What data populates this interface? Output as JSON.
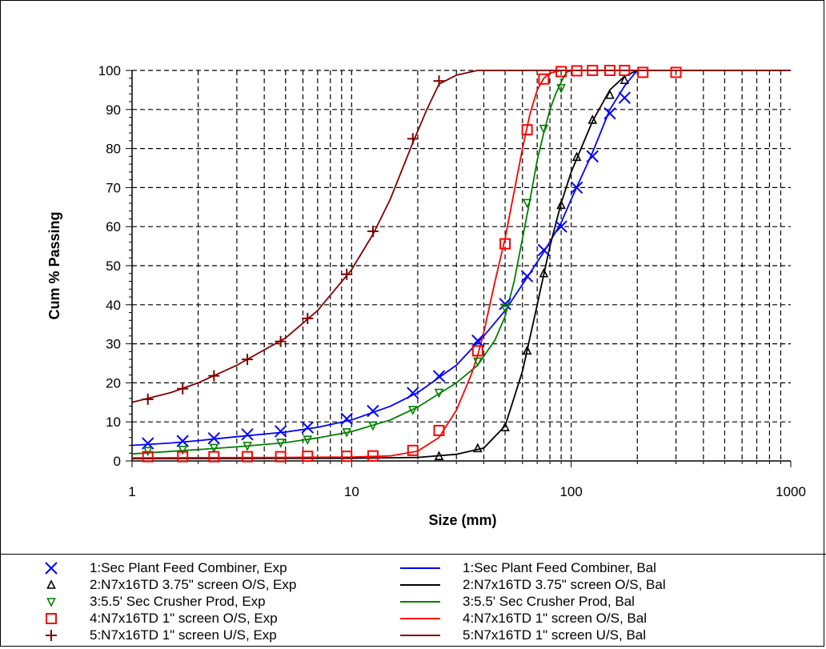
{
  "chart_data": {
    "type": "line",
    "title": "",
    "xlabel": "Size (mm)",
    "ylabel": "Cum % Passing",
    "x_scale": "log",
    "xlim": [
      1,
      1000
    ],
    "ylim": [
      0,
      100
    ],
    "x_ticks": [
      1,
      10,
      100,
      1000
    ],
    "x_tick_labels": [
      "1",
      "10",
      "100",
      "1000"
    ],
    "y_ticks": [
      0,
      10,
      20,
      30,
      40,
      50,
      60,
      70,
      80,
      90,
      100
    ],
    "y_tick_labels": [
      "0",
      "10",
      "20",
      "30",
      "40",
      "50",
      "60",
      "70",
      "80",
      "90",
      "100"
    ],
    "grid": true,
    "legend_position": "bottom",
    "series": [
      {
        "id": 1,
        "exp_label": "1:Sec Plant Feed Combiner, Exp",
        "bal_label": "1:Sec Plant Feed Combiner, Bal",
        "color": "#0000ff",
        "marker": "x",
        "exp": [
          [
            1.18,
            4.5
          ],
          [
            1.7,
            5.1
          ],
          [
            2.36,
            5.8
          ],
          [
            3.35,
            6.8
          ],
          [
            4.75,
            7.6
          ],
          [
            6.3,
            8.6
          ],
          [
            9.5,
            10.8
          ],
          [
            12.5,
            12.8
          ],
          [
            19,
            17.4
          ],
          [
            25,
            21.7
          ],
          [
            37.5,
            30.8
          ],
          [
            50,
            40.2
          ],
          [
            63,
            47.3
          ],
          [
            75,
            54
          ],
          [
            90,
            60
          ],
          [
            106,
            70
          ],
          [
            125,
            78
          ],
          [
            150,
            89
          ],
          [
            175,
            93
          ]
        ],
        "bal": [
          [
            1,
            4
          ],
          [
            1.5,
            4.6
          ],
          [
            2,
            5.2
          ],
          [
            3,
            6.2
          ],
          [
            5,
            7.4
          ],
          [
            7,
            8.6
          ],
          [
            10,
            10.5
          ],
          [
            15,
            14
          ],
          [
            20,
            17.5
          ],
          [
            30,
            24.5
          ],
          [
            40,
            32
          ],
          [
            50,
            38.5
          ],
          [
            63,
            47
          ],
          [
            75,
            53.5
          ],
          [
            90,
            61
          ],
          [
            100,
            67
          ],
          [
            125,
            79
          ],
          [
            150,
            90
          ],
          [
            175,
            96
          ],
          [
            190,
            98.5
          ],
          [
            200,
            100
          ],
          [
            1000,
            100
          ]
        ]
      },
      {
        "id": 2,
        "exp_label": "2:N7x16TD 3.75\" screen O/S, Exp",
        "bal_label": "2:N7x16TD 3.75\" screen O/S, Bal",
        "color": "#000000",
        "marker": "triangle-up",
        "exp": [
          [
            25,
            1.2
          ],
          [
            37.5,
            3.2
          ],
          [
            50,
            8.6
          ],
          [
            63,
            28.2
          ],
          [
            75,
            48
          ],
          [
            90,
            65.5
          ],
          [
            106,
            77.8
          ],
          [
            125,
            87.3
          ],
          [
            150,
            93.7
          ],
          [
            175,
            97.5
          ]
        ],
        "bal": [
          [
            1,
            0.6
          ],
          [
            10,
            0.7
          ],
          [
            20,
            0.9
          ],
          [
            30,
            1.7
          ],
          [
            40,
            3.3
          ],
          [
            50,
            9
          ],
          [
            60,
            23
          ],
          [
            70,
            40
          ],
          [
            80,
            55
          ],
          [
            90,
            66
          ],
          [
            100,
            74
          ],
          [
            125,
            87
          ],
          [
            150,
            95
          ],
          [
            175,
            98.5
          ],
          [
            200,
            100
          ],
          [
            1000,
            100
          ]
        ]
      },
      {
        "id": 3,
        "exp_label": "3:5.5' Sec Crusher Prod, Exp",
        "bal_label": "3:5.5' Sec Crusher Prod, Bal",
        "color": "#008000",
        "marker": "triangle-down",
        "exp": [
          [
            1.18,
            2.6
          ],
          [
            1.7,
            2.9
          ],
          [
            2.36,
            3.4
          ],
          [
            3.35,
            3.9
          ],
          [
            4.75,
            4.7
          ],
          [
            6.3,
            5.5
          ],
          [
            9.5,
            7.4
          ],
          [
            12.5,
            9.1
          ],
          [
            19,
            13.1
          ],
          [
            25,
            17.5
          ],
          [
            37.5,
            25.5
          ],
          [
            50,
            39.3
          ],
          [
            63,
            66.1
          ],
          [
            75,
            85.1
          ],
          [
            90,
            95.5
          ]
        ],
        "bal": [
          [
            1,
            1.8
          ],
          [
            2,
            2.9
          ],
          [
            3,
            3.6
          ],
          [
            5,
            4.7
          ],
          [
            7,
            5.9
          ],
          [
            10,
            7.5
          ],
          [
            15,
            10.5
          ],
          [
            20,
            13.8
          ],
          [
            30,
            20
          ],
          [
            37.5,
            24.5
          ],
          [
            45,
            31
          ],
          [
            50,
            37
          ],
          [
            55,
            46
          ],
          [
            60,
            57
          ],
          [
            65,
            67
          ],
          [
            70,
            77
          ],
          [
            75,
            84
          ],
          [
            80,
            90
          ],
          [
            85,
            94
          ],
          [
            90,
            97
          ],
          [
            95,
            99.5
          ],
          [
            100,
            100
          ],
          [
            1000,
            100
          ]
        ]
      },
      {
        "id": 4,
        "exp_label": "4:N7x16TD 1\" screen O/S, Exp",
        "bal_label": "4:N7x16TD 1\" screen O/S, Bal",
        "color": "#ff0000",
        "marker": "square",
        "exp": [
          [
            1.18,
            1.1
          ],
          [
            1.7,
            1.1
          ],
          [
            2.36,
            1.1
          ],
          [
            3.35,
            1.1
          ],
          [
            4.75,
            1.1
          ],
          [
            6.3,
            1.2
          ],
          [
            9.5,
            1.2
          ],
          [
            12.5,
            1.3
          ],
          [
            19,
            2.7
          ],
          [
            25,
            7.8
          ],
          [
            37.5,
            28.2
          ],
          [
            50,
            55.6
          ],
          [
            63,
            84.8
          ],
          [
            75,
            97.8
          ],
          [
            90,
            99.7
          ],
          [
            106,
            99.9
          ],
          [
            125,
            100
          ],
          [
            150,
            100
          ],
          [
            175,
            100
          ],
          [
            212,
            99.5
          ],
          [
            300,
            99.5
          ]
        ],
        "bal": [
          [
            1,
            0.8
          ],
          [
            5,
            0.9
          ],
          [
            10,
            1
          ],
          [
            15,
            1.3
          ],
          [
            20,
            2.5
          ],
          [
            25,
            6
          ],
          [
            30,
            13
          ],
          [
            35,
            22
          ],
          [
            37.5,
            27
          ],
          [
            40,
            33
          ],
          [
            45,
            46
          ],
          [
            50,
            57
          ],
          [
            55,
            69
          ],
          [
            60,
            80
          ],
          [
            65,
            89
          ],
          [
            70,
            95
          ],
          [
            75,
            98
          ],
          [
            80,
            99.3
          ],
          [
            90,
            100
          ],
          [
            1000,
            100
          ]
        ]
      },
      {
        "id": 5,
        "exp_label": "5:N7x16TD 1\" screen U/S, Exp",
        "bal_label": "5:N7x16TD 1\" screen U/S, Bal",
        "color": "#800000",
        "marker": "plus",
        "exp": [
          [
            1.18,
            15.8
          ],
          [
            1.7,
            18.5
          ],
          [
            2.36,
            21.8
          ],
          [
            3.35,
            26
          ],
          [
            4.75,
            30.6
          ],
          [
            6.3,
            36.5
          ],
          [
            9.5,
            47.8
          ],
          [
            12.5,
            58.8
          ],
          [
            19,
            82.5
          ],
          [
            25,
            97.3
          ]
        ],
        "bal": [
          [
            1,
            15
          ],
          [
            1.5,
            17.5
          ],
          [
            2,
            20
          ],
          [
            3,
            24.5
          ],
          [
            5,
            31.5
          ],
          [
            7,
            38.5
          ],
          [
            10,
            49
          ],
          [
            12.5,
            58
          ],
          [
            15,
            67
          ],
          [
            19,
            81.5
          ],
          [
            22,
            90
          ],
          [
            25,
            96.5
          ],
          [
            30,
            98.8
          ],
          [
            37.5,
            100
          ],
          [
            1000,
            100
          ]
        ]
      }
    ]
  }
}
